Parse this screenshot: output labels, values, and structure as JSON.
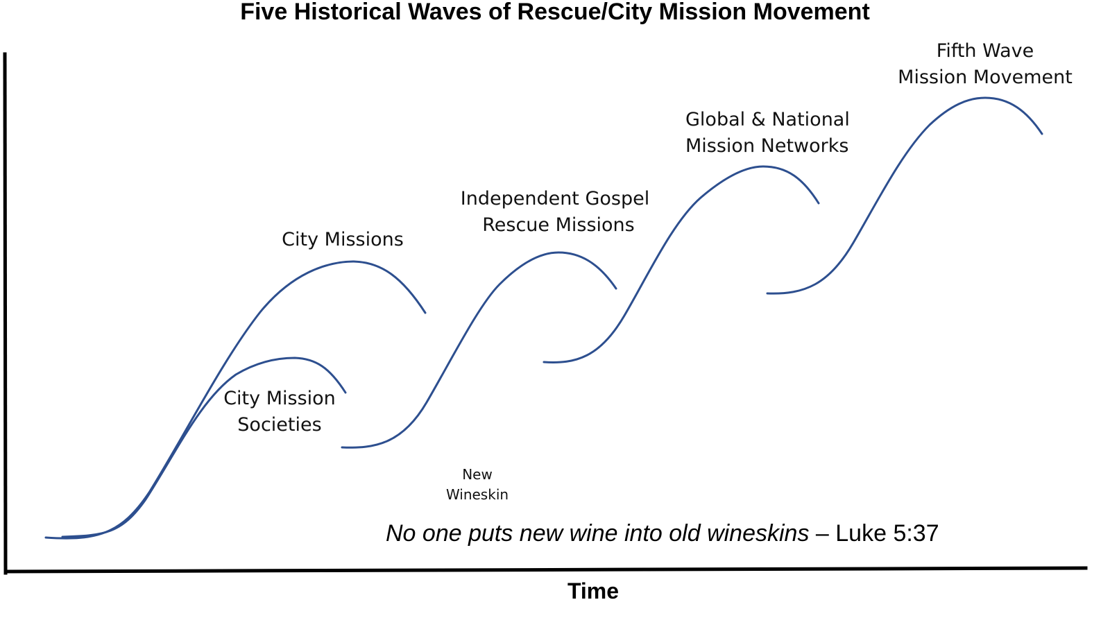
{
  "title": "Five Historical Waves of Rescue/City Mission Movement",
  "waves": [
    {
      "label_line1": "City Mission",
      "label_line2": "Societies"
    },
    {
      "label_line1": "City Missions",
      "label_line2": ""
    },
    {
      "label_line1": "Independent Gospel",
      "label_line2": "Rescue Missions"
    },
    {
      "label_line1": "Global & National",
      "label_line2": "Mission Networks"
    },
    {
      "label_line1": "Fifth Wave",
      "label_line2": "Mission Movement"
    }
  ],
  "annotation": {
    "line1": "New",
    "line2": "Wineskin"
  },
  "quote": {
    "text": "No one puts new wine into old wineskins",
    "reference": "– Luke 5:37"
  },
  "x_axis_label": "Time",
  "colors": {
    "curve": "#2d4f8f",
    "axis": "#000000",
    "text": "#111111"
  }
}
